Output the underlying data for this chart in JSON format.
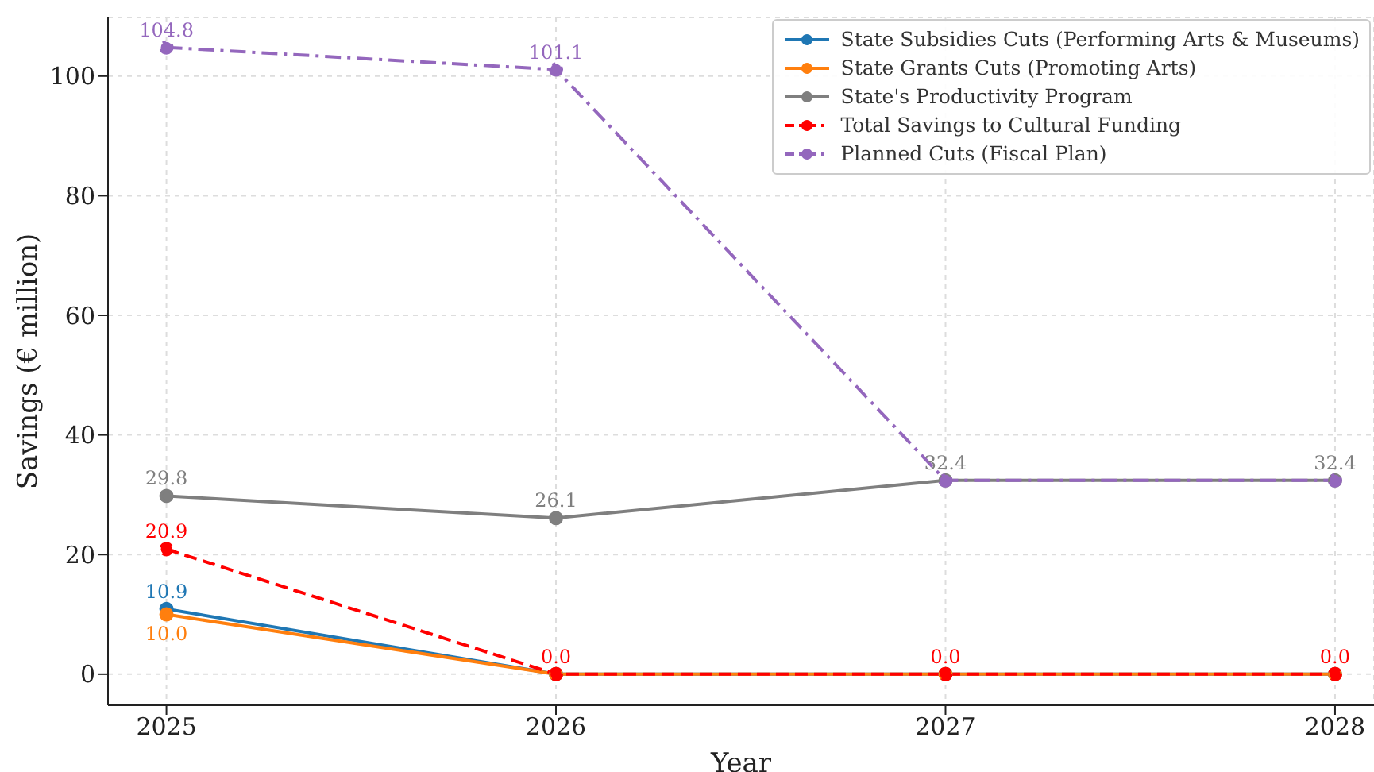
{
  "chart_data": {
    "type": "line",
    "xlabel": "Year",
    "ylabel": "Savings (€ million)",
    "x": [
      2025,
      2026,
      2027,
      2028
    ],
    "series": [
      {
        "name": "State Subsidies Cuts (Performing Arts & Museums)",
        "color": "#1f77b4",
        "values": [
          10.9,
          0,
          0,
          0
        ],
        "value_labels": [
          "10.9",
          null,
          null,
          null
        ]
      },
      {
        "name": "State Grants Cuts (Promoting Arts)",
        "color": "#ff7f0e",
        "values": [
          10.0,
          0,
          0,
          0
        ],
        "value_labels": [
          "10.0",
          null,
          null,
          null
        ]
      },
      {
        "name": "State's Productivity Program",
        "color": "#7f7f7f",
        "values": [
          29.8,
          26.1,
          32.4,
          32.4
        ],
        "value_labels": [
          "29.8",
          "26.1",
          "32.4",
          "32.4"
        ]
      },
      {
        "name": "Total Savings to Cultural Funding",
        "color": "#ff0000",
        "values": [
          20.9,
          0,
          0,
          0
        ],
        "line_style": "dashed",
        "value_labels": [
          "20.9",
          "0.0",
          "0.0",
          "0.0"
        ]
      },
      {
        "name": "Planned Cuts (Fiscal Plan)",
        "color": "#9467bd",
        "values": [
          104.8,
          101.1,
          32.4,
          32.4
        ],
        "line_style": "dashdot",
        "value_labels": [
          "104.8",
          "101.1",
          null,
          null
        ]
      }
    ],
    "xlim": [
      2024.85,
      2028.1
    ],
    "xticks": [
      2025,
      2026,
      2027,
      2028
    ],
    "ylim": [
      -5.2,
      109.8
    ],
    "yticks": [
      0,
      20,
      40,
      60,
      80,
      100
    ],
    "grid": true,
    "legend": "top right",
    "marker": "circle",
    "line_style": "solid"
  }
}
